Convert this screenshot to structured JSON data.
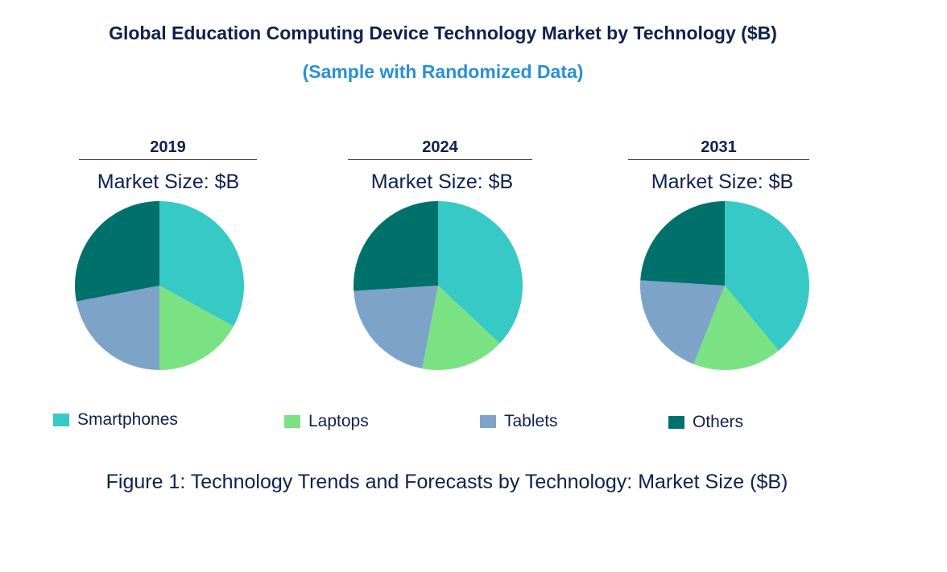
{
  "chart_data": {
    "type": "pie",
    "title": "Global Education Computing Device Technology Market by Technology ($B)",
    "subtitle": "(Sample with Randomized Data)",
    "caption": "Figure 1: Technology Trends and Forecasts by Technology: Market Size ($B)",
    "categories": [
      "Smartphones",
      "Laptops",
      "Tablets",
      "Others"
    ],
    "colors": [
      "#37c9c5",
      "#7be283",
      "#7ea3c8",
      "#00716a"
    ],
    "legend_position": "bottom",
    "pies": [
      {
        "year": "2019",
        "label": "Market Size: $B",
        "values": [
          33,
          17,
          22,
          28
        ]
      },
      {
        "year": "2024",
        "label": "Market Size: $B",
        "values": [
          37,
          16,
          21,
          26
        ]
      },
      {
        "year": "2031",
        "label": "Market Size: $B",
        "values": [
          39,
          17,
          20,
          24
        ]
      }
    ]
  }
}
